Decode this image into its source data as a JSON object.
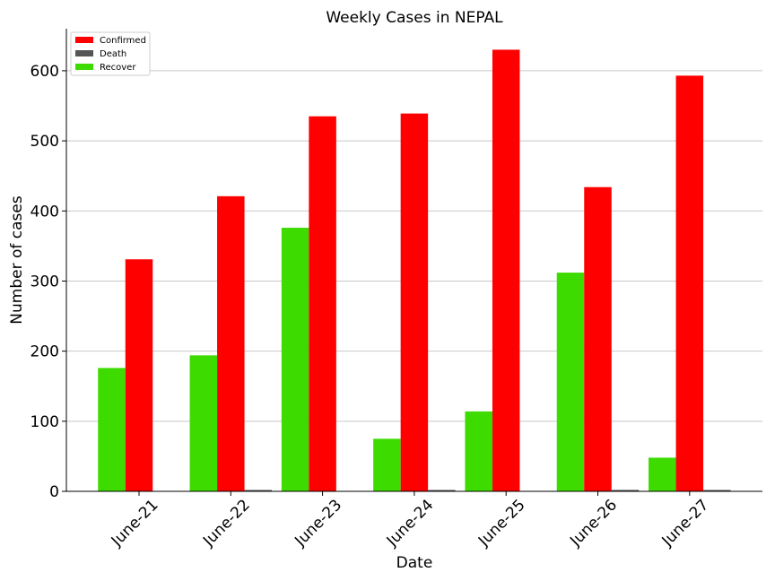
{
  "chart_data": {
    "type": "bar",
    "title": "Weekly Cases in NEPAL",
    "xlabel": "Date",
    "ylabel": "Number of cases",
    "categories": [
      "June-21",
      "June-22",
      "June-23",
      "June-24",
      "June-25",
      "June-26",
      "June-27"
    ],
    "series": [
      {
        "name": "Recover",
        "color": "#3ddb00",
        "values": [
          176,
          194,
          376,
          75,
          114,
          312,
          48
        ]
      },
      {
        "name": "Confirmed",
        "color": "#ff0000",
        "values": [
          331,
          421,
          535,
          539,
          630,
          434,
          593
        ]
      },
      {
        "name": "Death",
        "color": "#555555",
        "values": [
          0,
          1,
          0,
          1,
          0,
          2,
          1
        ]
      }
    ],
    "legend_order": [
      "Confirmed",
      "Death",
      "Recover"
    ],
    "ylim": [
      0,
      660
    ],
    "yticks": [
      0,
      100,
      200,
      300,
      400,
      500,
      600
    ],
    "grid": "horizontal",
    "legend_position": "top-left"
  }
}
